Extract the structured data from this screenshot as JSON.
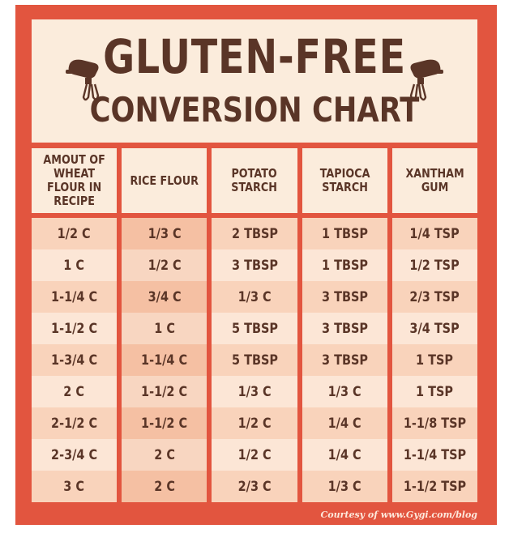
{
  "title": {
    "line1": "GLUTEN-FREE",
    "line2": "CONVERSION CHART"
  },
  "decor": {
    "left_icon": "hand-mixer-icon",
    "right_icon": "hand-mixer-icon"
  },
  "colors": {
    "background": "#e2553f",
    "panel": "#fbecdc",
    "text": "#5a3527",
    "row_dark": "#f9d3bb",
    "row_light": "#fce6d6"
  },
  "table": {
    "headers": [
      "AMOUT OF WHEAT FLOUR IN RECIPE",
      "RICE FLOUR",
      "POTATO STARCH",
      "TAPIOCA STARCH",
      "XANTHAM GUM"
    ],
    "columns": [
      [
        "1/2 C",
        "1 C",
        "1-1/4 C",
        "1-1/2 C",
        "1-3/4 C",
        "2 C",
        "2-1/2 C",
        "2-3/4 C",
        "3 C"
      ],
      [
        "1/3 C",
        "1/2 C",
        "3/4 C",
        "1 C",
        "1-1/4 C",
        "1-1/2 C",
        "1-1/2 C",
        "2 C",
        "2 C"
      ],
      [
        "2 TBSP",
        "3 TBSP",
        "1/3 C",
        "5 TBSP",
        "5 TBSP",
        "1/3 C",
        "1/2 C",
        "1/2 C",
        "2/3 C"
      ],
      [
        "1 TBSP",
        "1 TBSP",
        "3 TBSP",
        "3 TBSP",
        "3 TBSP",
        "1/3 C",
        "1/4 C",
        "1/4 C",
        "1/3 C"
      ],
      [
        "1/4 TSP",
        "1/2 TSP",
        "2/3 TSP",
        "3/4 TSP",
        "1 TSP",
        "1 TSP",
        "1-1/8 TSP",
        "1-1/4 TSP",
        "1-1/2 TSP"
      ]
    ]
  },
  "credit": "Courtesy of www.Gygi.com/blog"
}
